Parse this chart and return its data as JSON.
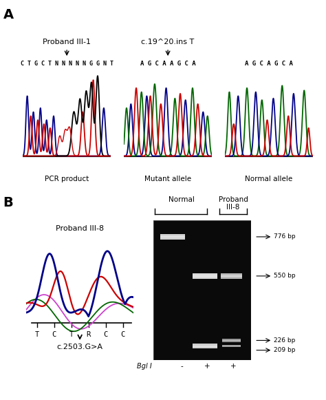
{
  "fig_width": 4.74,
  "fig_height": 5.81,
  "bg_color": "#ffffff",
  "panel_A_label": "A",
  "panel_B_label": "B",
  "pcr_title": "Proband III-1",
  "pcr_sequence": "CTGCTNNNNNGGNT",
  "pcr_xlabel": "PCR product",
  "ins_title": "c.19^20.ins T",
  "mutant_sequence": "AGCAAGCA",
  "normal_sequence": "AGCAGCA",
  "mutant_xlabel": "Mutant allele",
  "normal_xlabel": "Normal allele",
  "proband_b_title": "Proband III-8",
  "sequence_b": [
    "T",
    "C",
    "T",
    "R",
    "C",
    "C"
  ],
  "mutation_label": "c.2503.G>A",
  "gel_bg": "#0a0a0a",
  "gel_label_normal": "Normal",
  "gel_label_proband": "Proband\nIII-8",
  "gel_annotations": [
    [
      "776 bp",
      0.88
    ],
    [
      "550 bp",
      0.6
    ],
    [
      "226 bp",
      0.14
    ],
    [
      "209 bp",
      0.07
    ]
  ],
  "bgl_label": "Bgl I",
  "bgl_values": [
    "-",
    "+",
    "+"
  ],
  "colors": {
    "red": "#cc0000",
    "blue": "#000088",
    "green": "#006600",
    "black": "#000000",
    "pink": "#cc44cc",
    "dark_green": "#005500"
  }
}
